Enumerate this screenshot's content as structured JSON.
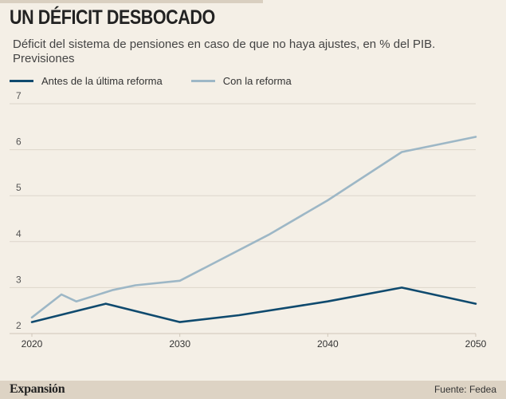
{
  "header": {
    "title": "UN DÉFICIT DESBOCADO",
    "subtitle": "Déficit del sistema de pensiones en caso de que no haya ajustes, en % del PIB. Previsiones"
  },
  "footer": {
    "brand": "Expansión",
    "source": "Fuente: Fedea"
  },
  "colors": {
    "before": "#0f4a6e",
    "after": "#9db7c6",
    "grid": "#ddd6cb",
    "background": "#f4efe6"
  },
  "chart_data": {
    "type": "line",
    "title": "UN DÉFICIT DESBOCADO",
    "subtitle": "Déficit del sistema de pensiones en caso de que no haya ajustes, en % del PIB. Previsiones",
    "xlabel": "",
    "ylabel": "",
    "xlim": [
      2020,
      2050
    ],
    "ylim": [
      2,
      7
    ],
    "x_ticks": [
      2020,
      2030,
      2040,
      2050
    ],
    "y_ticks": [
      2,
      3,
      4,
      5,
      6,
      7
    ],
    "grid": true,
    "legend_position": "top-left",
    "series": [
      {
        "name": "Antes de la última reforma",
        "x": [
          2020,
          2025,
          2030,
          2034,
          2040,
          2045,
          2050
        ],
        "values": [
          2.25,
          2.65,
          2.25,
          2.4,
          2.7,
          3.0,
          2.65
        ]
      },
      {
        "name": "Con la reforma",
        "x": [
          2020,
          2022,
          2023,
          2025.5,
          2027,
          2030,
          2036,
          2040,
          2045,
          2050
        ],
        "values": [
          2.35,
          2.85,
          2.7,
          2.95,
          3.05,
          3.15,
          4.15,
          4.9,
          5.95,
          6.28
        ]
      }
    ]
  }
}
